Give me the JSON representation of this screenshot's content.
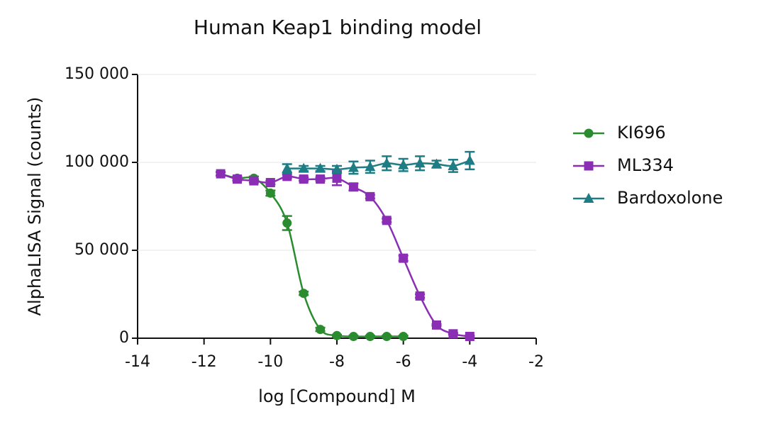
{
  "chart_data": {
    "type": "scatter",
    "title": "Human Keap1 binding model",
    "x_label": "log [Compound] M",
    "y_label": "AlphaLISA Signal (counts)",
    "xlim": [
      -14,
      -2
    ],
    "xticks": [
      -14,
      -12,
      -10,
      -8,
      -6,
      -4,
      -2
    ],
    "ylim": [
      0,
      150000
    ],
    "yticks": [
      0,
      {
        "value": 50000,
        "label": "50 000"
      },
      {
        "value": 100000,
        "label": "100 000"
      },
      {
        "value": 150000,
        "label": "150 000"
      }
    ],
    "grid": true,
    "legend": "right",
    "series": [
      {
        "name": "KI696",
        "color": "#2a8c2f",
        "marker": "circle",
        "x": [
          -11.5,
          -11,
          -10.5,
          -10,
          -9.5,
          -9,
          -8.5,
          -8,
          -7.5,
          -7,
          -6.5,
          -6
        ],
        "values": [
          93500,
          91000,
          91000,
          82500,
          65500,
          25500,
          5000,
          1500,
          1000,
          1000,
          1000,
          1000
        ],
        "errors": [
          1000,
          1000,
          1000,
          1500,
          4000,
          1000,
          1000,
          500,
          500,
          500,
          500,
          500
        ]
      },
      {
        "name": "ML334",
        "color": "#8a2fb5",
        "marker": "square",
        "x": [
          -11.5,
          -11,
          -10.5,
          -10,
          -9.5,
          -9,
          -8.5,
          -8,
          -7.5,
          -7,
          -6.5,
          -6,
          -5.5,
          -5,
          -4.5,
          -4
        ],
        "values": [
          93500,
          90500,
          89500,
          88500,
          92000,
          90500,
          90500,
          91000,
          86000,
          80500,
          67000,
          45500,
          24000,
          7500,
          2500,
          1000
        ],
        "errors": [
          1000,
          1000,
          1000,
          1000,
          1000,
          1000,
          1000,
          4000,
          2000,
          1000,
          1000,
          1500,
          1000,
          500,
          500,
          500
        ]
      },
      {
        "name": "Bardoxolone",
        "color": "#1d7c84",
        "marker": "triangle",
        "x": [
          -9.5,
          -9,
          -8.5,
          -8,
          -7.5,
          -7,
          -6.5,
          -6,
          -5.5,
          -5,
          -4.5,
          -4
        ],
        "values": [
          96500,
          96500,
          96500,
          96000,
          97000,
          97500,
          99500,
          98500,
          99500,
          99000,
          98000,
          101000
        ],
        "errors": [
          2500,
          1500,
          1500,
          2000,
          3500,
          3500,
          4000,
          3500,
          4000,
          2000,
          3500,
          5000
        ]
      }
    ]
  }
}
